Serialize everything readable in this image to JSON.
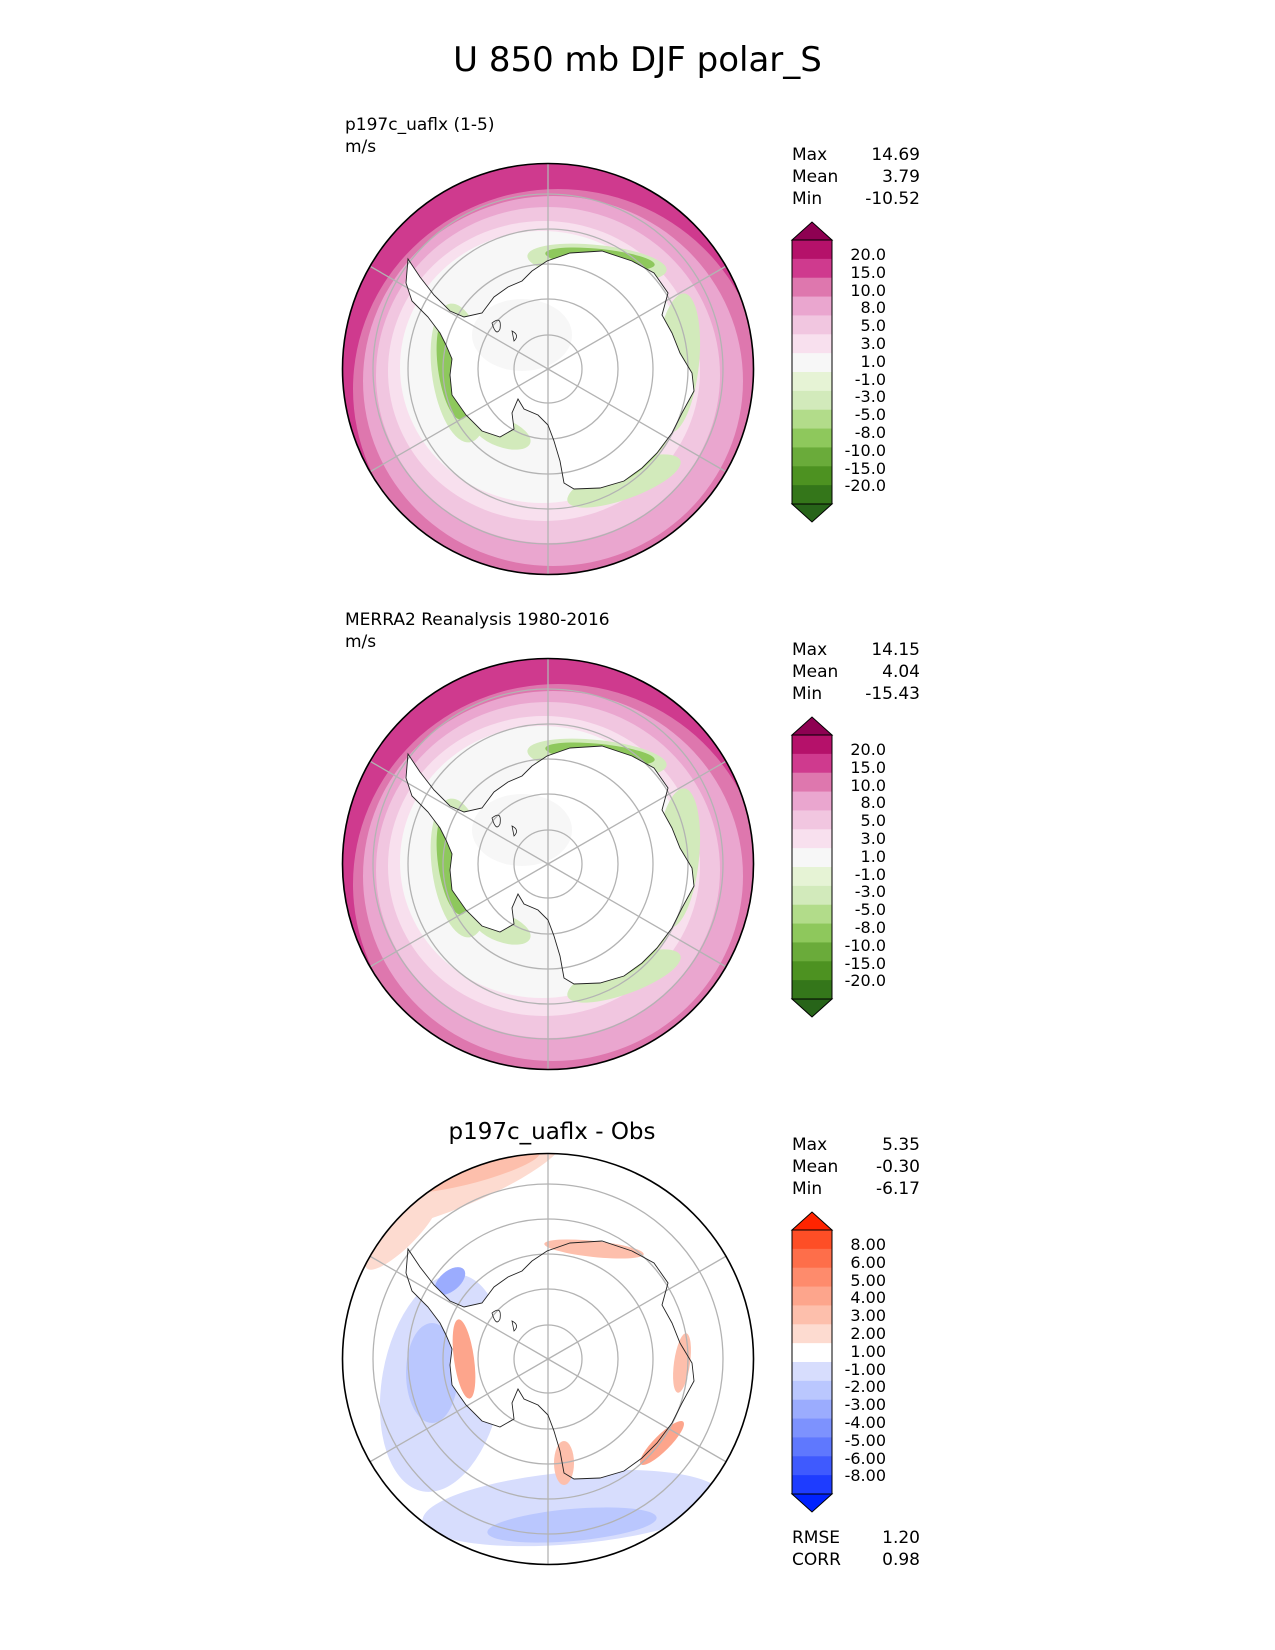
{
  "title": "U 850 mb DJF polar_S",
  "panels": [
    {
      "id": "test",
      "label_line1": "p197c_uaflx (1-5)",
      "label_line2": "m/s",
      "stats": [
        {
          "name": "Max",
          "value": "14.69"
        },
        {
          "name": "Mean",
          "value": "3.79"
        },
        {
          "name": "Min",
          "value": "-10.52"
        }
      ]
    },
    {
      "id": "ref",
      "label_line1": "MERRA2 Reanalysis 1980-2016",
      "label_line2": "m/s",
      "stats": [
        {
          "name": "Max",
          "value": "14.15"
        },
        {
          "name": "Mean",
          "value": "4.04"
        },
        {
          "name": "Min",
          "value": "-15.43"
        }
      ]
    },
    {
      "id": "diff",
      "title": "p197c_uaflx - Obs",
      "stats": [
        {
          "name": "Max",
          "value": "5.35"
        },
        {
          "name": "Mean",
          "value": "-0.30"
        },
        {
          "name": "Min",
          "value": "-6.17"
        }
      ],
      "metrics": [
        {
          "name": "RMSE",
          "value": "1.20"
        },
        {
          "name": "CORR",
          "value": "0.98"
        }
      ]
    }
  ],
  "chart_data": [
    {
      "type": "heatmap",
      "projection": "south-polar-stereographic",
      "levels": [
        "20.0",
        "15.0",
        "10.0",
        "8.0",
        "5.0",
        "3.0",
        "1.0",
        "-1.0",
        "-3.0",
        "-5.0",
        "-8.0",
        "-10.0",
        "-15.0",
        "-20.0"
      ],
      "colors": [
        "#8e0152",
        "#b5116a",
        "#cf3a8e",
        "#de77ae",
        "#eaa6cf",
        "#f1c6e0",
        "#f8e0ee",
        "#f7f7f7",
        "#e6f3d5",
        "#d2eabb",
        "#b2dc8a",
        "#8ec85c",
        "#6aab3a",
        "#4d9221",
        "#34761a",
        "#276419"
      ],
      "legend": "right",
      "grid": true
    },
    {
      "type": "heatmap",
      "projection": "south-polar-stereographic",
      "levels": [
        "20.0",
        "15.0",
        "10.0",
        "8.0",
        "5.0",
        "3.0",
        "1.0",
        "-1.0",
        "-3.0",
        "-5.0",
        "-8.0",
        "-10.0",
        "-15.0",
        "-20.0"
      ],
      "colors": [
        "#8e0152",
        "#b5116a",
        "#cf3a8e",
        "#de77ae",
        "#eaa6cf",
        "#f1c6e0",
        "#f8e0ee",
        "#f7f7f7",
        "#e6f3d5",
        "#d2eabb",
        "#b2dc8a",
        "#8ec85c",
        "#6aab3a",
        "#4d9221",
        "#34761a",
        "#276419"
      ],
      "legend": "right",
      "grid": true
    },
    {
      "type": "heatmap",
      "projection": "south-polar-stereographic",
      "levels": [
        "8.00",
        "6.00",
        "5.00",
        "4.00",
        "3.00",
        "2.00",
        "1.00",
        "-1.00",
        "-2.00",
        "-3.00",
        "-4.00",
        "-5.00",
        "-6.00",
        "-8.00"
      ],
      "colors": [
        "#ff2400",
        "#fe4e26",
        "#fe6e4a",
        "#fe8b6c",
        "#fda58c",
        "#fdbfac",
        "#fddbd0",
        "#ffffff",
        "#d7ddfd",
        "#bac7fe",
        "#9bacfe",
        "#7d92fe",
        "#5f78fe",
        "#3f5afe",
        "#1e3cff",
        "#0022ff"
      ],
      "legend": "right",
      "grid": true
    }
  ]
}
